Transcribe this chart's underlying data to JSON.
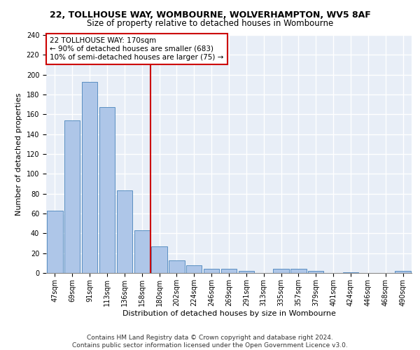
{
  "title1": "22, TOLLHOUSE WAY, WOMBOURNE, WOLVERHAMPTON, WV5 8AF",
  "title2": "Size of property relative to detached houses in Wombourne",
  "xlabel": "Distribution of detached houses by size in Wombourne",
  "ylabel": "Number of detached properties",
  "bar_labels": [
    "47sqm",
    "69sqm",
    "91sqm",
    "113sqm",
    "136sqm",
    "158sqm",
    "180sqm",
    "202sqm",
    "224sqm",
    "246sqm",
    "269sqm",
    "291sqm",
    "313sqm",
    "335sqm",
    "357sqm",
    "379sqm",
    "401sqm",
    "424sqm",
    "446sqm",
    "468sqm",
    "490sqm"
  ],
  "bar_values": [
    63,
    154,
    193,
    167,
    83,
    43,
    27,
    13,
    8,
    4,
    4,
    2,
    0,
    4,
    4,
    2,
    0,
    1,
    0,
    0,
    2
  ],
  "bar_color": "#aec6e8",
  "bar_edge_color": "#5a8fc2",
  "vline_x": 5.5,
  "vline_color": "#cc0000",
  "annotation_text": "22 TOLLHOUSE WAY: 170sqm\n← 90% of detached houses are smaller (683)\n10% of semi-detached houses are larger (75) →",
  "annotation_box_color": "#ffffff",
  "annotation_box_edge": "#cc0000",
  "ylim": [
    0,
    240
  ],
  "yticks": [
    0,
    20,
    40,
    60,
    80,
    100,
    120,
    140,
    160,
    180,
    200,
    220,
    240
  ],
  "footer": "Contains HM Land Registry data © Crown copyright and database right 2024.\nContains public sector information licensed under the Open Government Licence v3.0.",
  "bg_color": "#e8eef7",
  "grid_color": "#ffffff",
  "title1_fontsize": 9,
  "title2_fontsize": 8.5,
  "xlabel_fontsize": 8,
  "ylabel_fontsize": 8,
  "tick_fontsize": 7,
  "annotation_fontsize": 7.5,
  "footer_fontsize": 6.5
}
